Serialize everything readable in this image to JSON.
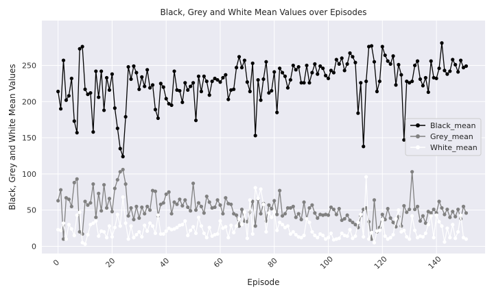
{
  "chart_data": {
    "type": "line",
    "title": "Black, Grey and White Mean Values over Episodes",
    "xlabel": "Episode",
    "ylabel": "Black, Grey and White Mean Values",
    "xlim": [
      -6,
      158
    ],
    "ylim": [
      -10,
      312
    ],
    "xticks": [
      0,
      20,
      40,
      60,
      80,
      100,
      120,
      140
    ],
    "yticks": [
      0,
      50,
      100,
      150,
      200,
      250
    ],
    "grid": true,
    "legend_position": "center-right",
    "x": [
      0,
      1,
      2,
      3,
      4,
      5,
      6,
      7,
      8,
      9,
      10,
      11,
      12,
      13,
      14,
      15,
      16,
      17,
      18,
      19,
      20,
      21,
      22,
      23,
      24,
      25,
      26,
      27,
      28,
      29,
      30,
      31,
      32,
      33,
      34,
      35,
      36,
      37,
      38,
      39,
      40,
      41,
      42,
      43,
      44,
      45,
      46,
      47,
      48,
      49,
      50,
      51,
      52,
      53,
      54,
      55,
      56,
      57,
      58,
      59,
      60,
      61,
      62,
      63,
      64,
      65,
      66,
      67,
      68,
      69,
      70,
      71,
      72,
      73,
      74,
      75,
      76,
      77,
      78,
      79,
      80,
      81,
      82,
      83,
      84,
      85,
      86,
      87,
      88,
      89,
      90,
      91,
      92,
      93,
      94,
      95,
      96,
      97,
      98,
      99,
      100,
      101,
      102,
      103,
      104,
      105,
      106,
      107,
      108,
      109,
      110,
      111,
      112,
      113,
      114,
      115,
      116,
      117,
      118,
      119,
      120,
      121,
      122,
      123,
      124,
      125,
      126,
      127,
      128,
      129,
      130,
      131,
      132,
      133,
      134,
      135,
      136,
      137,
      138,
      139,
      140,
      141,
      142,
      143,
      144,
      145,
      146,
      147,
      148,
      149,
      150,
      151
    ],
    "series": [
      {
        "name": "Black_mean",
        "color": "#000000",
        "values": [
          214,
          190,
          257,
          202,
          208,
          232,
          173,
          157,
          273,
          276,
          217,
          210,
          212,
          158,
          242,
          206,
          242,
          188,
          233,
          216,
          238,
          191,
          163,
          135,
          124,
          179,
          248,
          231,
          249,
          240,
          217,
          234,
          221,
          244,
          219,
          223,
          189,
          177,
          225,
          220,
          204,
          197,
          195,
          242,
          216,
          215,
          199,
          226,
          216,
          221,
          226,
          174,
          235,
          214,
          235,
          228,
          209,
          228,
          232,
          230,
          227,
          233,
          237,
          203,
          216,
          217,
          247,
          262,
          247,
          257,
          227,
          214,
          253,
          153,
          230,
          202,
          231,
          255,
          212,
          215,
          241,
          185,
          246,
          240,
          235,
          219,
          230,
          250,
          244,
          248,
          226,
          226,
          250,
          226,
          240,
          252,
          238,
          249,
          246,
          236,
          232,
          243,
          240,
          258,
          252,
          260,
          243,
          252,
          267,
          262,
          254,
          184,
          226,
          138,
          228,
          276,
          277,
          255,
          214,
          228,
          276,
          264,
          256,
          252,
          263,
          223,
          251,
          237,
          147,
          228,
          226,
          228,
          250,
          256,
          231,
          222,
          233,
          213,
          256,
          233,
          232,
          246,
          281,
          243,
          238,
          242,
          258,
          251,
          241,
          257,
          247,
          249
        ]
      },
      {
        "name": "Grey_mean",
        "color": "#808080",
        "values": [
          63,
          78,
          10,
          67,
          65,
          55,
          88,
          93,
          20,
          17,
          62,
          57,
          60,
          86,
          40,
          73,
          49,
          85,
          53,
          66,
          48,
          80,
          92,
          103,
          106,
          86,
          42,
          53,
          37,
          55,
          39,
          54,
          45,
          55,
          50,
          77,
          76,
          42,
          58,
          60,
          72,
          75,
          45,
          61,
          58,
          65,
          56,
          64,
          54,
          49,
          87,
          50,
          60,
          55,
          46,
          69,
          61,
          53,
          54,
          64,
          57,
          45,
          67,
          59,
          58,
          45,
          43,
          28,
          51,
          35,
          34,
          47,
          62,
          28,
          65,
          45,
          59,
          35,
          57,
          52,
          63,
          44,
          77,
          42,
          45,
          53,
          53,
          55,
          40,
          45,
          37,
          61,
          38,
          53,
          57,
          46,
          39,
          44,
          43,
          44,
          43,
          54,
          51,
          44,
          52,
          36,
          38,
          43,
          36,
          33,
          30,
          26,
          42,
          51,
          53,
          34,
          10,
          64,
          20,
          26,
          44,
          37,
          52,
          39,
          33,
          27,
          41,
          28,
          56,
          47,
          51,
          103,
          51,
          55,
          35,
          42,
          32,
          48,
          46,
          51,
          46,
          62,
          53,
          44,
          51,
          40,
          48,
          41,
          51,
          38,
          55,
          46
        ]
      },
      {
        "name": "White_mean",
        "color": "#ffffff",
        "values": [
          23,
          22,
          32,
          10,
          30,
          24,
          15,
          43,
          47,
          5,
          3,
          16,
          30,
          32,
          35,
          14,
          21,
          20,
          12,
          28,
          13,
          26,
          44,
          28,
          68,
          32,
          10,
          28,
          12,
          16,
          20,
          13,
          29,
          21,
          32,
          28,
          18,
          43,
          17,
          17,
          21,
          25,
          23,
          24,
          26,
          29,
          30,
          35,
          15,
          22,
          27,
          18,
          40,
          28,
          18,
          12,
          26,
          14,
          16,
          17,
          35,
          25,
          27,
          12,
          29,
          19,
          28,
          38,
          30,
          47,
          11,
          64,
          17,
          81,
          66,
          79,
          58,
          20,
          46,
          40,
          48,
          22,
          33,
          30,
          26,
          28,
          17,
          20,
          16,
          13,
          12,
          15,
          38,
          33,
          20,
          15,
          12,
          17,
          15,
          10,
          12,
          18,
          9,
          10,
          11,
          18,
          15,
          14,
          23,
          11,
          14,
          33,
          44,
          13,
          96,
          10,
          19,
          5,
          21,
          22,
          37,
          14,
          10,
          12,
          16,
          38,
          50,
          20,
          22,
          13,
          10,
          42,
          22,
          12,
          14,
          13,
          18,
          30,
          42,
          12,
          43,
          34,
          28,
          6,
          25,
          12,
          30,
          11,
          20,
          43,
          12,
          10
        ]
      }
    ]
  }
}
